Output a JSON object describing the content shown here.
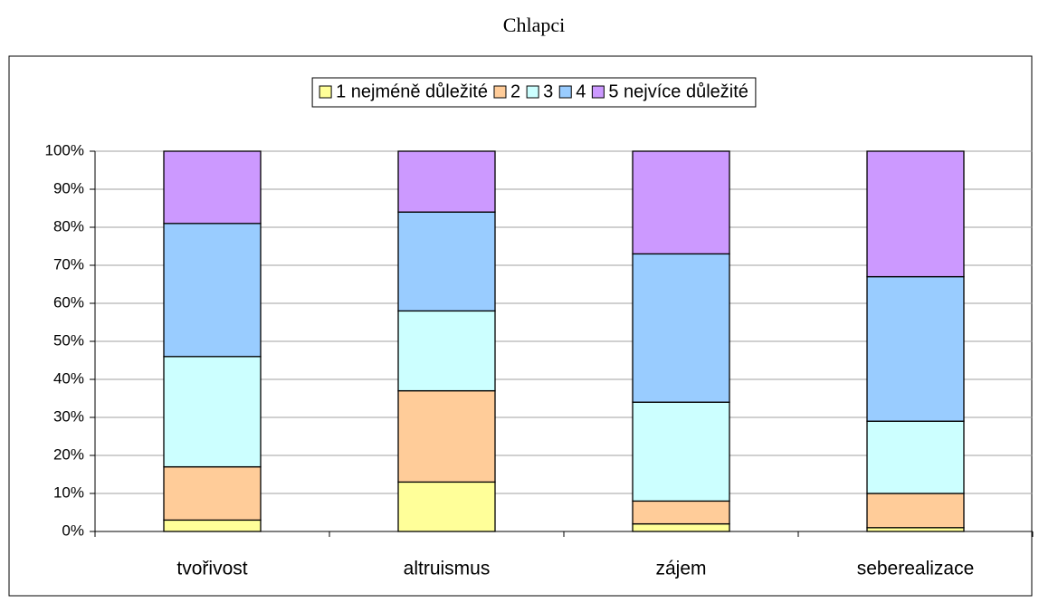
{
  "chart_data": {
    "type": "stacked_bar_100",
    "title": "Chlapci",
    "categories": [
      "tvořivost",
      "altruismus",
      "zájem",
      "seberealizace"
    ],
    "series": [
      {
        "name": "1 nejméně důležité",
        "color": "#FFFF99",
        "values": [
          3,
          13,
          2,
          1
        ]
      },
      {
        "name": "2",
        "color": "#FFCC99",
        "values": [
          14,
          24,
          6,
          9
        ]
      },
      {
        "name": "3",
        "color": "#CCFFFF",
        "values": [
          29,
          21,
          26,
          19
        ]
      },
      {
        "name": "4",
        "color": "#99CCFF",
        "values": [
          35,
          26,
          39,
          38
        ]
      },
      {
        "name": "5 nejvíce důležité",
        "color": "#CC99FF",
        "values": [
          19,
          16,
          27,
          33
        ]
      }
    ],
    "ylim": [
      0,
      100
    ],
    "yticks": [
      {
        "value": 0,
        "label": "0%"
      },
      {
        "value": 10,
        "label": "10%"
      },
      {
        "value": 20,
        "label": "20%"
      },
      {
        "value": 30,
        "label": "30%"
      },
      {
        "value": 40,
        "label": "40%"
      },
      {
        "value": 50,
        "label": "50%"
      },
      {
        "value": 60,
        "label": "60%"
      },
      {
        "value": 70,
        "label": "70%"
      },
      {
        "value": 80,
        "label": "80%"
      },
      {
        "value": 90,
        "label": "90%"
      },
      {
        "value": 100,
        "label": "100%"
      }
    ],
    "grid": true,
    "legend": "top"
  }
}
